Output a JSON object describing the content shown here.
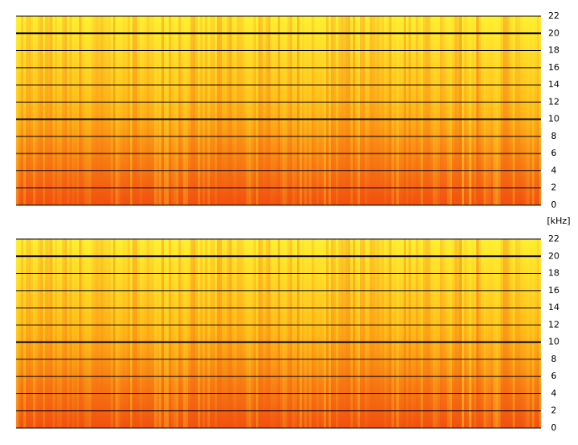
{
  "chart_data": [
    {
      "type": "spectrogram",
      "ylim": [
        0,
        22
      ],
      "yticks": [
        0,
        2,
        4,
        6,
        8,
        10,
        12,
        14,
        16,
        18,
        20,
        22
      ],
      "emphasized_gridlines": [
        10,
        20
      ],
      "colors": [
        "#fff030",
        "#ffb818",
        "#f25010"
      ]
    },
    {
      "type": "spectrogram",
      "ylim": [
        0,
        22
      ],
      "yticks": [
        0,
        2,
        4,
        6,
        8,
        10,
        12,
        14,
        16,
        18,
        20,
        22
      ],
      "emphasized_gridlines": [
        10,
        20
      ],
      "colors": [
        "#fff030",
        "#ffb818",
        "#f25010"
      ]
    }
  ],
  "y_axis_label": "[kHz]"
}
